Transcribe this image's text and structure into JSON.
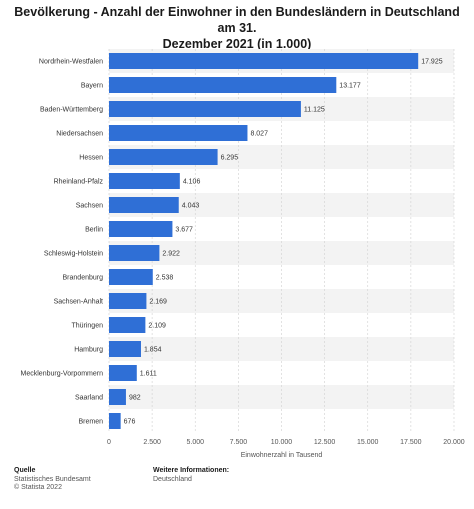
{
  "chart_data": {
    "type": "bar",
    "orientation": "horizontal",
    "title": "Bevölkerung - Anzahl der Einwohner in den Bundesländern in Deutschland am 31. Dezember 2021 (in 1.000)",
    "title_lines": [
      "Bevölkerung - Anzahl der Einwohner in den Bundesländern in Deutschland am 31.",
      "Dezember 2021 (in 1.000)"
    ],
    "xlabel": "Einwohnerzahl in Tausend",
    "ylabel": "",
    "xlim": [
      0,
      20000
    ],
    "ticks": [
      0,
      2500,
      5000,
      7500,
      10000,
      12500,
      15000,
      17500,
      20000
    ],
    "tick_labels": [
      "0",
      "2.500",
      "5.000",
      "7.500",
      "10.000",
      "12.500",
      "15.000",
      "17.500",
      "20.000"
    ],
    "grid": true,
    "categories": [
      "Nordrhein-Westfalen",
      "Bayern",
      "Baden-Württemberg",
      "Niedersachsen",
      "Hessen",
      "Rheinland-Pfalz",
      "Sachsen",
      "Berlin",
      "Schleswig-Holstein",
      "Brandenburg",
      "Sachsen-Anhalt",
      "Thüringen",
      "Hamburg",
      "Mecklenburg-Vorpommern",
      "Saarland",
      "Bremen"
    ],
    "values": [
      17925,
      13177,
      11125,
      8027,
      6295,
      4106,
      4043,
      3677,
      2922,
      2538,
      2169,
      2109,
      1854,
      1611,
      982,
      676
    ],
    "value_labels": [
      "17.925",
      "13.177",
      "11.125",
      "8.027",
      "6.295",
      "4.106",
      "4.043",
      "3.677",
      "2.922",
      "2.538",
      "2.169",
      "2.109",
      "1.854",
      "1.611",
      "982",
      "676"
    ],
    "colors": {
      "bar": "#2f6fd6",
      "stripe": "#f3f3f3",
      "grid": "#d0d0d0"
    }
  },
  "footer": {
    "source_heading": "Quelle",
    "source_lines": [
      "Statistisches Bundesamt",
      "© Statista 2022"
    ],
    "info_heading": "Weitere Informationen:",
    "info_lines": [
      "Deutschland"
    ]
  }
}
